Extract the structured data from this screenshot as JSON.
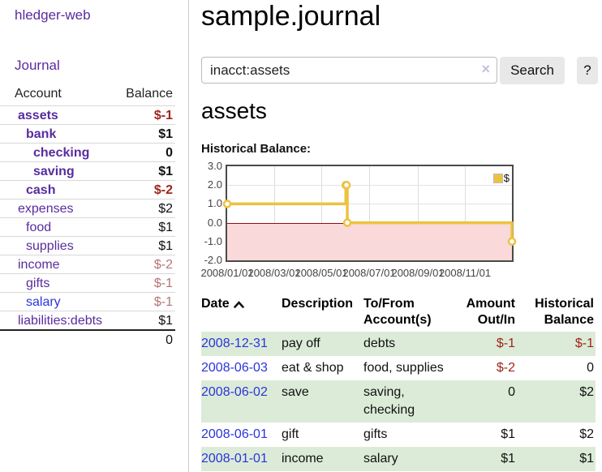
{
  "app": {
    "title": "hledger-web"
  },
  "sidebar": {
    "journal_label": "Journal",
    "headers": {
      "account": "Account",
      "balance": "Balance"
    },
    "accounts": [
      {
        "name": "assets",
        "balance": "$-1"
      },
      {
        "name": "bank",
        "balance": "$1"
      },
      {
        "name": "checking",
        "balance": "0"
      },
      {
        "name": "saving",
        "balance": "$1"
      },
      {
        "name": "cash",
        "balance": "$-2"
      },
      {
        "name": "expenses",
        "balance": "$2"
      },
      {
        "name": "food",
        "balance": "$1"
      },
      {
        "name": "supplies",
        "balance": "$1"
      },
      {
        "name": "income",
        "balance": "$-2"
      },
      {
        "name": "gifts",
        "balance": "$-1"
      },
      {
        "name": "salary",
        "balance": "$-1"
      },
      {
        "name": "liabilities:debts",
        "balance": "$1"
      }
    ],
    "total": "0"
  },
  "main": {
    "title": "sample.journal",
    "search": {
      "value": "inacct:assets",
      "clear_icon": "×",
      "button_label": "Search",
      "help_label": "?"
    },
    "account_heading": "assets",
    "chart_label": "Historical Balance:"
  },
  "chart_data": {
    "type": "line",
    "step": true,
    "title": "Historical Balance",
    "series": [
      {
        "name": "$",
        "color": "#edc240",
        "points": [
          [
            "2008-01-01",
            1
          ],
          [
            "2008-06-01",
            2
          ],
          [
            "2008-06-02",
            2
          ],
          [
            "2008-06-03",
            0
          ],
          [
            "2008-12-31",
            -1
          ]
        ]
      }
    ],
    "x_ticks": [
      "2008/01/01",
      "2008/03/01",
      "2008/05/01",
      "2008/07/01",
      "2008/09/01",
      "2008/11/01"
    ],
    "y_ticks": [
      "3.0",
      "2.0",
      "1.0",
      "0.0",
      "-1.0",
      "-2.0"
    ],
    "ylim": [
      -2.0,
      3.0
    ],
    "legend_position": "top-right",
    "grid": true,
    "negative_region_color": "#f9d9d9",
    "zero_line_color": "#8f1010"
  },
  "register": {
    "headers": {
      "date": "Date",
      "description": "Description",
      "accounts": "To/From Account(s)",
      "amount": "Amount Out/In",
      "balance": "Historical Balance"
    },
    "rows": [
      {
        "date": "2008-12-31",
        "description": "pay off",
        "accounts": "debts",
        "amount": "$-1",
        "balance": "$-1"
      },
      {
        "date": "2008-06-03",
        "description": "eat & shop",
        "accounts": "food, supplies",
        "amount": "$-2",
        "balance": "0"
      },
      {
        "date": "2008-06-02",
        "description": "save",
        "accounts": "saving, checking",
        "amount": "0",
        "balance": "$2"
      },
      {
        "date": "2008-06-01",
        "description": "gift",
        "accounts": "gifts",
        "amount": "$1",
        "balance": "$2"
      },
      {
        "date": "2008-01-01",
        "description": "income",
        "accounts": "salary",
        "amount": "$1",
        "balance": "$1"
      }
    ]
  }
}
